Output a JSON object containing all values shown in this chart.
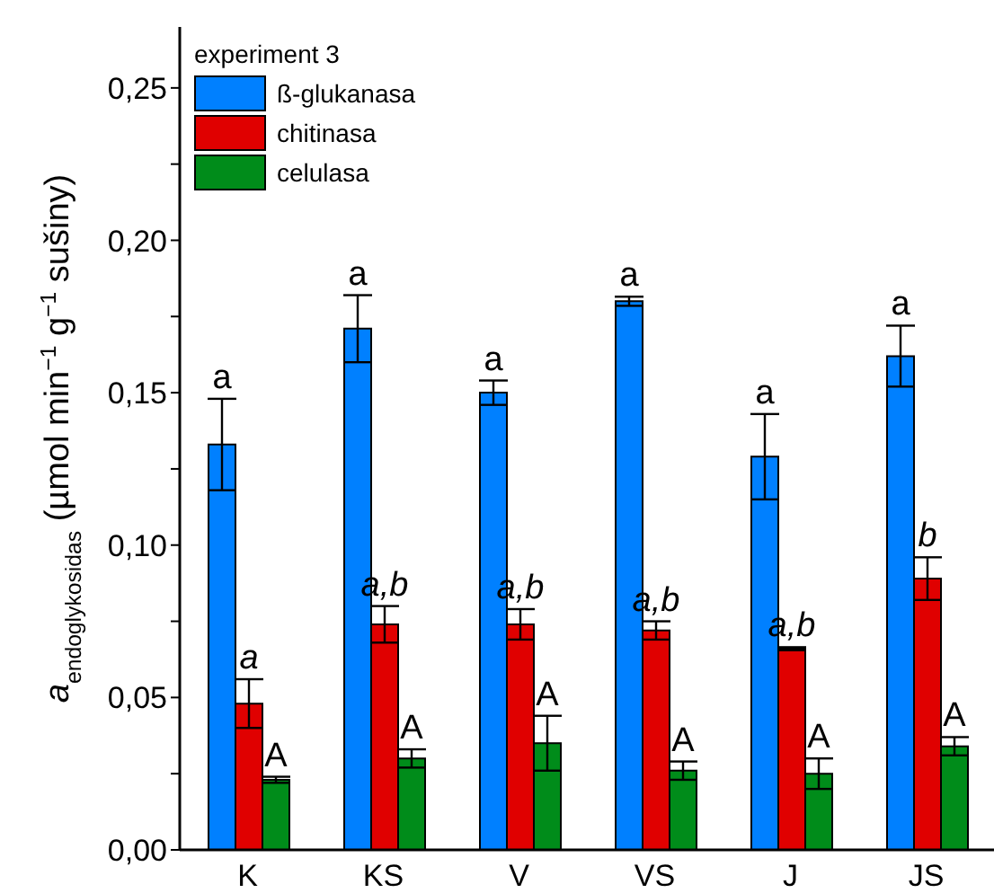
{
  "chart_data": {
    "type": "bar",
    "ylabel": "a$_{endoglykosidas}$ (µmol min$^{−1}$ g$^{−1}$ sušiny)",
    "legend_title": "experiment 3",
    "legend": "top left",
    "categories": [
      "K",
      "KS",
      "V",
      "VS",
      "J",
      "JS"
    ],
    "ylim": [
      0,
      0.27
    ],
    "yticks": [
      {
        "value": 0,
        "label": "0,00"
      },
      {
        "value": 0.025,
        "label": null
      },
      {
        "value": 0.05,
        "label": "0,05"
      },
      {
        "value": 0.075,
        "label": null
      },
      {
        "value": 0.1,
        "label": "0,10"
      },
      {
        "value": 0.125,
        "label": null
      },
      {
        "value": 0.15,
        "label": "0,15"
      },
      {
        "value": 0.175,
        "label": null
      },
      {
        "value": 0.2,
        "label": "0,20"
      },
      {
        "value": 0.225,
        "label": null
      },
      {
        "value": 0.25,
        "label": "0,25"
      }
    ],
    "series": [
      {
        "name": "ß-glukanasa",
        "color": "#0080ff",
        "values": [
          0.133,
          0.171,
          0.15,
          0.18,
          0.129,
          0.162
        ],
        "errors": [
          0.015,
          0.011,
          0.004,
          0.0015,
          0.014,
          0.01
        ],
        "value_labels": [
          "a",
          "a",
          "a",
          "a",
          "a",
          "a"
        ]
      },
      {
        "name": "chitinasa",
        "color": "#e00000",
        "values": [
          0.048,
          0.074,
          0.074,
          0.072,
          0.066,
          0.089
        ],
        "errors": [
          0.008,
          0.006,
          0.005,
          0.003,
          0.0005,
          0.007
        ],
        "value_labels": [
          "a",
          "a,b",
          "a,b",
          "a,b",
          "a,b",
          "b"
        ]
      },
      {
        "name": "celulasa",
        "color": "#008c1a",
        "values": [
          0.023,
          0.03,
          0.035,
          0.026,
          0.025,
          0.034
        ],
        "errors": [
          0.001,
          0.003,
          0.009,
          0.003,
          0.005,
          0.003
        ],
        "value_labels": [
          "A",
          "A",
          "A",
          "A",
          "A",
          "A"
        ]
      }
    ]
  }
}
